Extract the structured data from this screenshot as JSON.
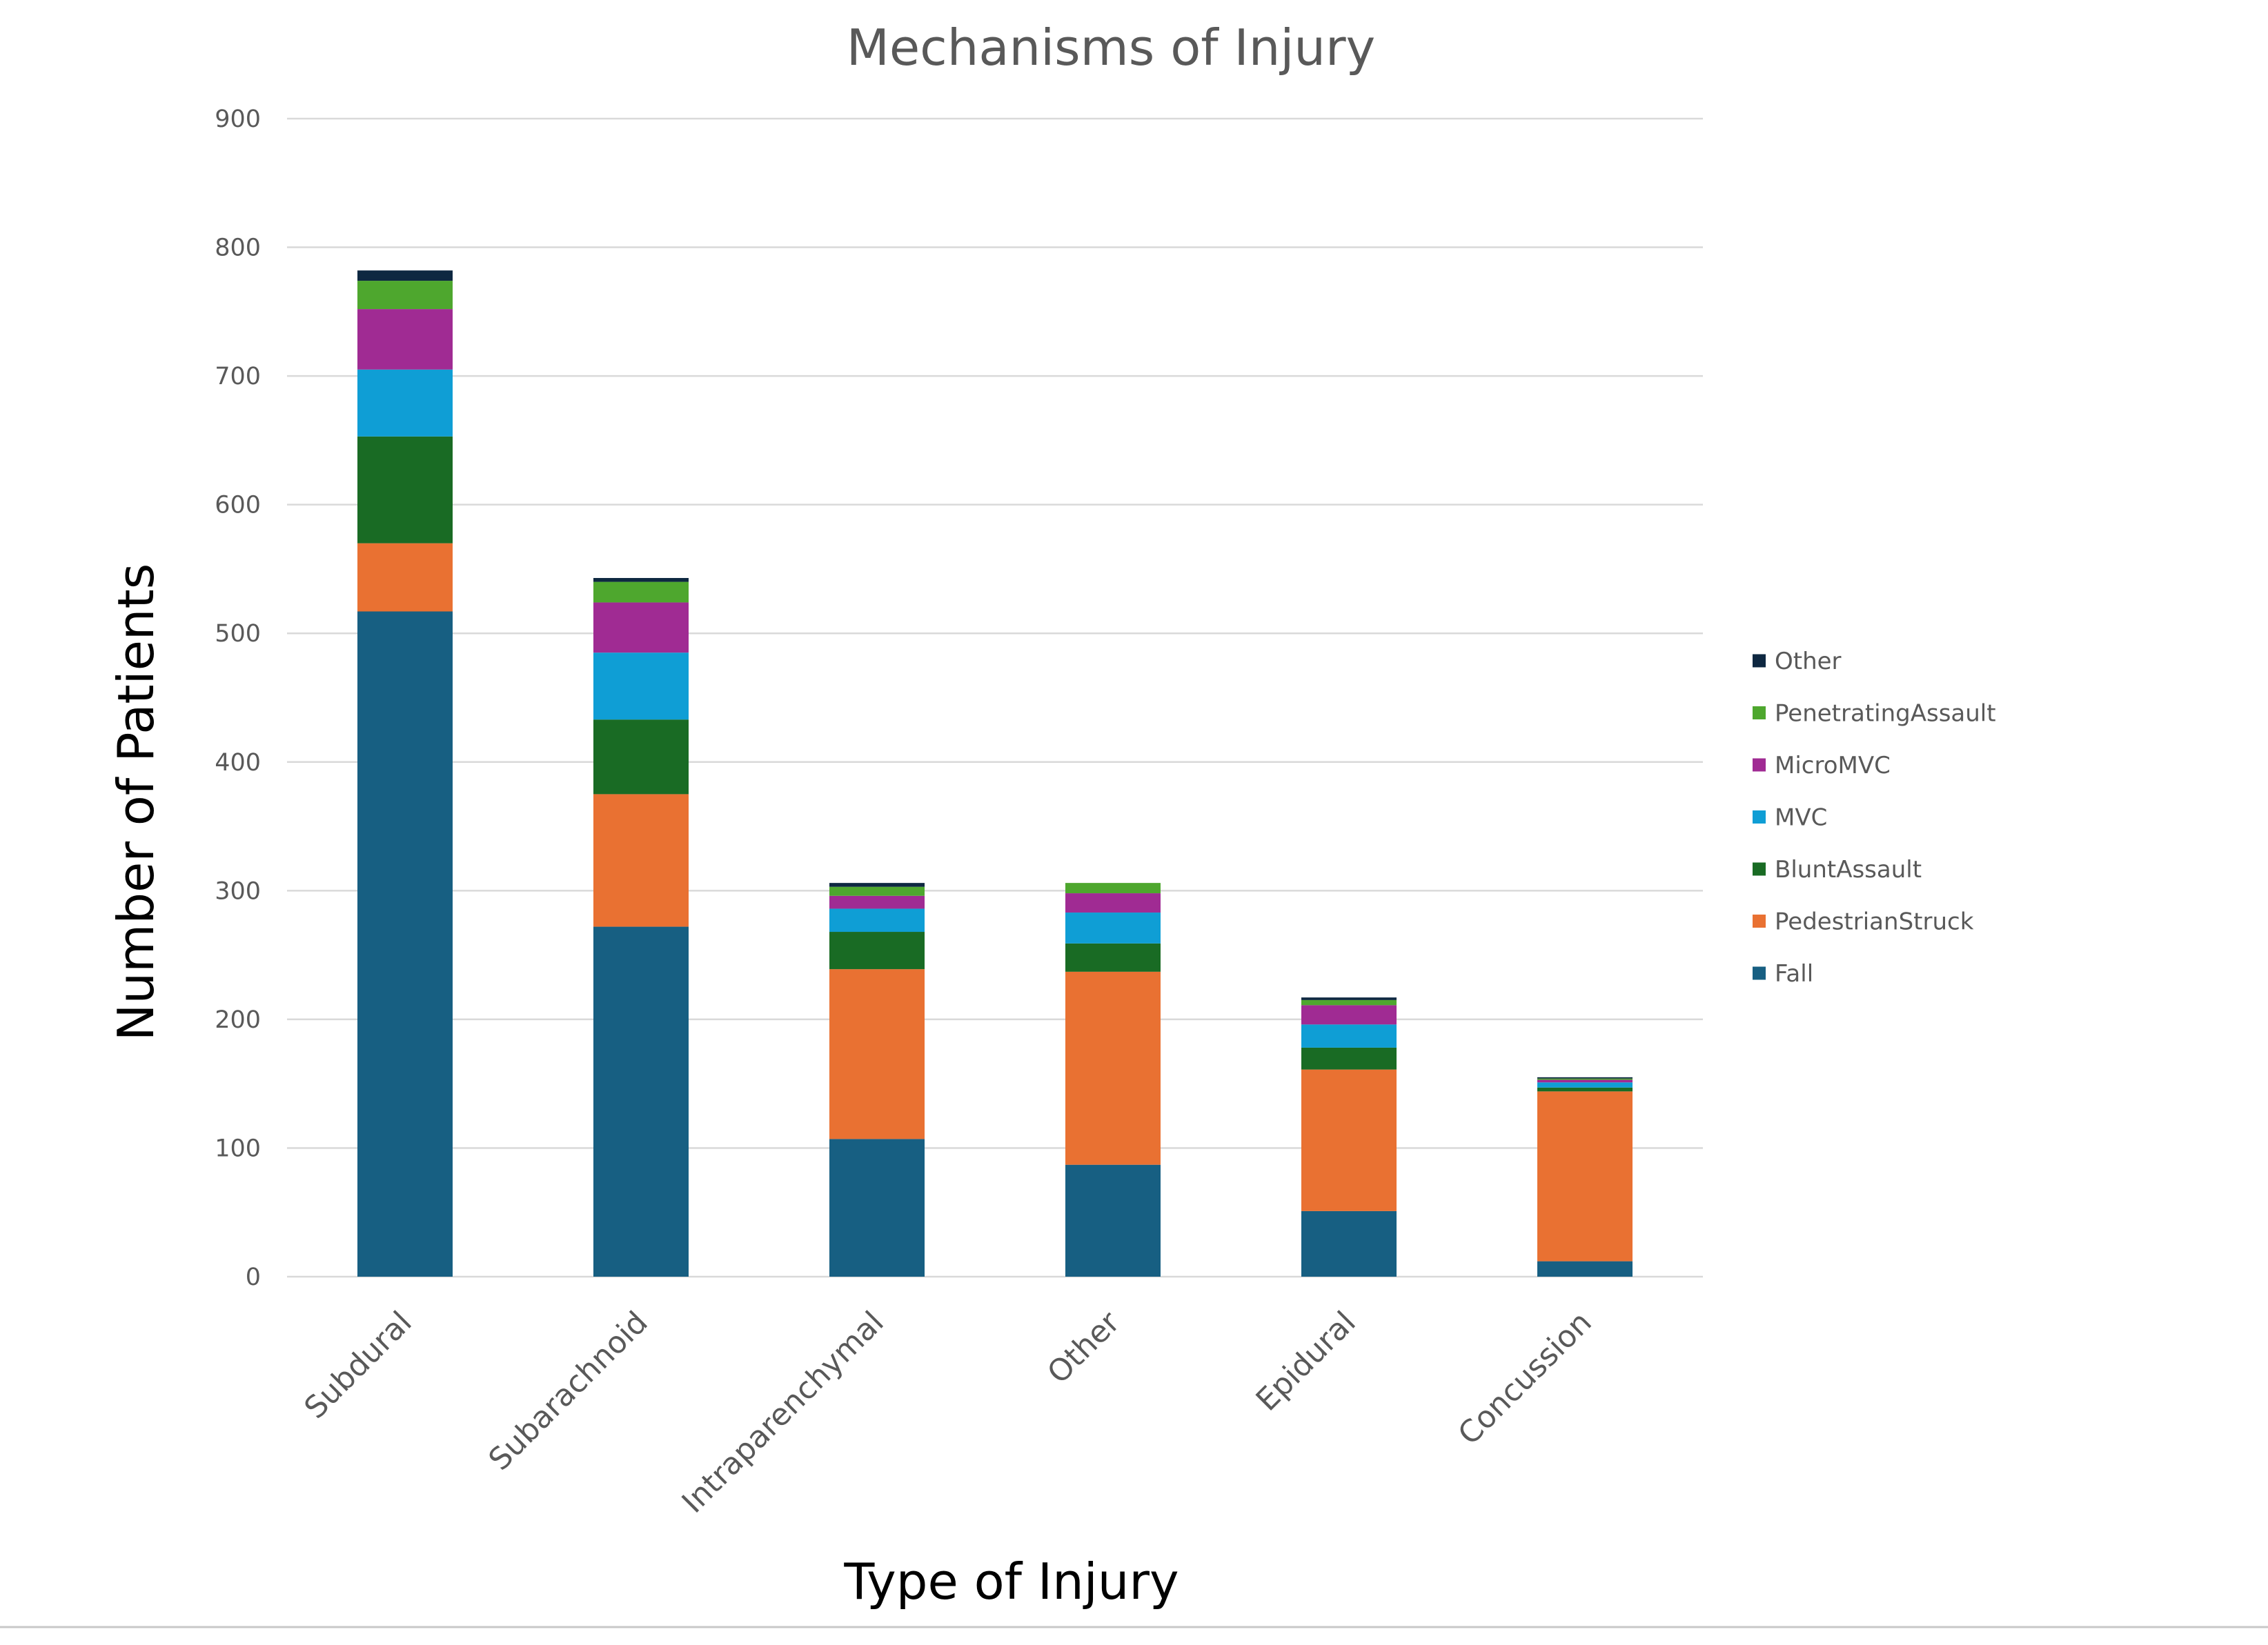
{
  "chart_data": {
    "type": "bar",
    "stacked": true,
    "title": "Mechanisms of Injury",
    "xlabel": "Type of Injury",
    "ylabel": "Number of Patients",
    "ylim": [
      0,
      900
    ],
    "yticks": [
      0,
      100,
      200,
      300,
      400,
      500,
      600,
      700,
      800,
      900
    ],
    "grid": true,
    "legend_position": "right",
    "categories": [
      "Subdural",
      "Subarachnoid",
      "Intraparenchymal",
      "Other",
      "Epidural",
      "Concussion"
    ],
    "series": [
      {
        "name": "Fall",
        "color": "#175f82",
        "values": [
          517,
          272,
          107,
          87,
          51,
          12
        ]
      },
      {
        "name": "PedestrianStruck",
        "color": "#e97132",
        "values": [
          53,
          103,
          132,
          150,
          110,
          132
        ]
      },
      {
        "name": "BluntAssault",
        "color": "#196b24",
        "values": [
          83,
          58,
          29,
          22,
          17,
          3
        ]
      },
      {
        "name": "MVC",
        "color": "#0f9ed5",
        "values": [
          52,
          52,
          18,
          24,
          18,
          4
        ]
      },
      {
        "name": "MicroMVC",
        "color": "#a02b93",
        "values": [
          47,
          39,
          10,
          15,
          15,
          2
        ]
      },
      {
        "name": "PenetratingAssault",
        "color": "#4ea72e",
        "values": [
          22,
          16,
          7,
          8,
          4,
          1
        ]
      },
      {
        "name": "Other",
        "color": "#0e2841",
        "values": [
          8,
          3,
          3,
          0,
          2,
          1
        ]
      }
    ]
  }
}
